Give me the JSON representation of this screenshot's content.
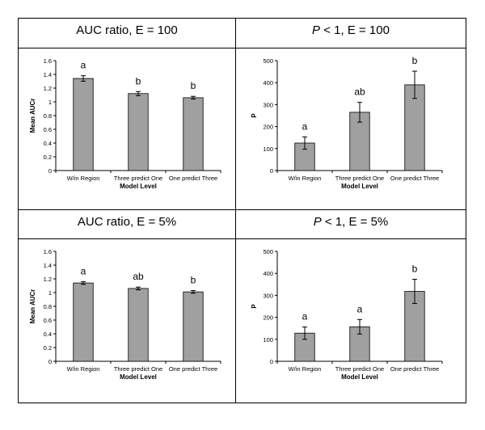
{
  "chart_data": [
    {
      "type": "bar",
      "header": {
        "italic": "",
        "text": "AUC ratio, E = 100"
      },
      "categories": [
        "W/in Region",
        "Three predict One",
        "One predict Three"
      ],
      "values": [
        1.34,
        1.12,
        1.06
      ],
      "errors": [
        0.04,
        0.03,
        0.02
      ],
      "group_letters": [
        "a",
        "b",
        "b"
      ],
      "ylabel": "Mean AUCr",
      "xlabel": "Model Level",
      "ylim": [
        0,
        1.6
      ],
      "yticks": [
        "0",
        "0.2",
        "0.4",
        "0.6",
        "0.8",
        "1",
        "1.2",
        "1.4",
        "1.6"
      ],
      "color": "#a0a0a0"
    },
    {
      "type": "bar",
      "header": {
        "italic": "P",
        "text": " < 1, E = 100"
      },
      "categories": [
        "W/in Region",
        "Three predict One",
        "One predict Three"
      ],
      "values": [
        125,
        265,
        390
      ],
      "errors": [
        28,
        45,
        62
      ],
      "group_letters": [
        "a",
        "ab",
        "b"
      ],
      "ylabel": "P",
      "xlabel": "Model Level",
      "ylim": [
        0,
        500
      ],
      "yticks": [
        "0",
        "100",
        "200",
        "300",
        "400",
        "500"
      ],
      "color": "#a0a0a0"
    },
    {
      "type": "bar",
      "header": {
        "italic": "",
        "text": "AUC ratio, E = 5%"
      },
      "categories": [
        "W/in Region",
        "Three predict One",
        "One predict Three"
      ],
      "values": [
        1.14,
        1.06,
        1.01
      ],
      "errors": [
        0.02,
        0.02,
        0.02
      ],
      "group_letters": [
        "a",
        "ab",
        "b"
      ],
      "ylabel": "Mean AUCr",
      "xlabel": "Model Level",
      "ylim": [
        0,
        1.6
      ],
      "yticks": [
        "0",
        "0.2",
        "0.4",
        "0.6",
        "0.8",
        "1",
        "1.2",
        "1.4",
        "1.6"
      ],
      "color": "#a0a0a0"
    },
    {
      "type": "bar",
      "header": {
        "italic": "P",
        "text": " < 1, E = 5%"
      },
      "categories": [
        "W/in Region",
        "Three predict One",
        "One predict Three"
      ],
      "values": [
        128,
        157,
        318
      ],
      "errors": [
        28,
        33,
        55
      ],
      "group_letters": [
        "a",
        "a",
        "b"
      ],
      "ylabel": "P",
      "xlabel": "Model Level",
      "ylim": [
        0,
        500
      ],
      "yticks": [
        "0",
        "100",
        "200",
        "300",
        "400",
        "500"
      ],
      "color": "#a0a0a0"
    }
  ]
}
